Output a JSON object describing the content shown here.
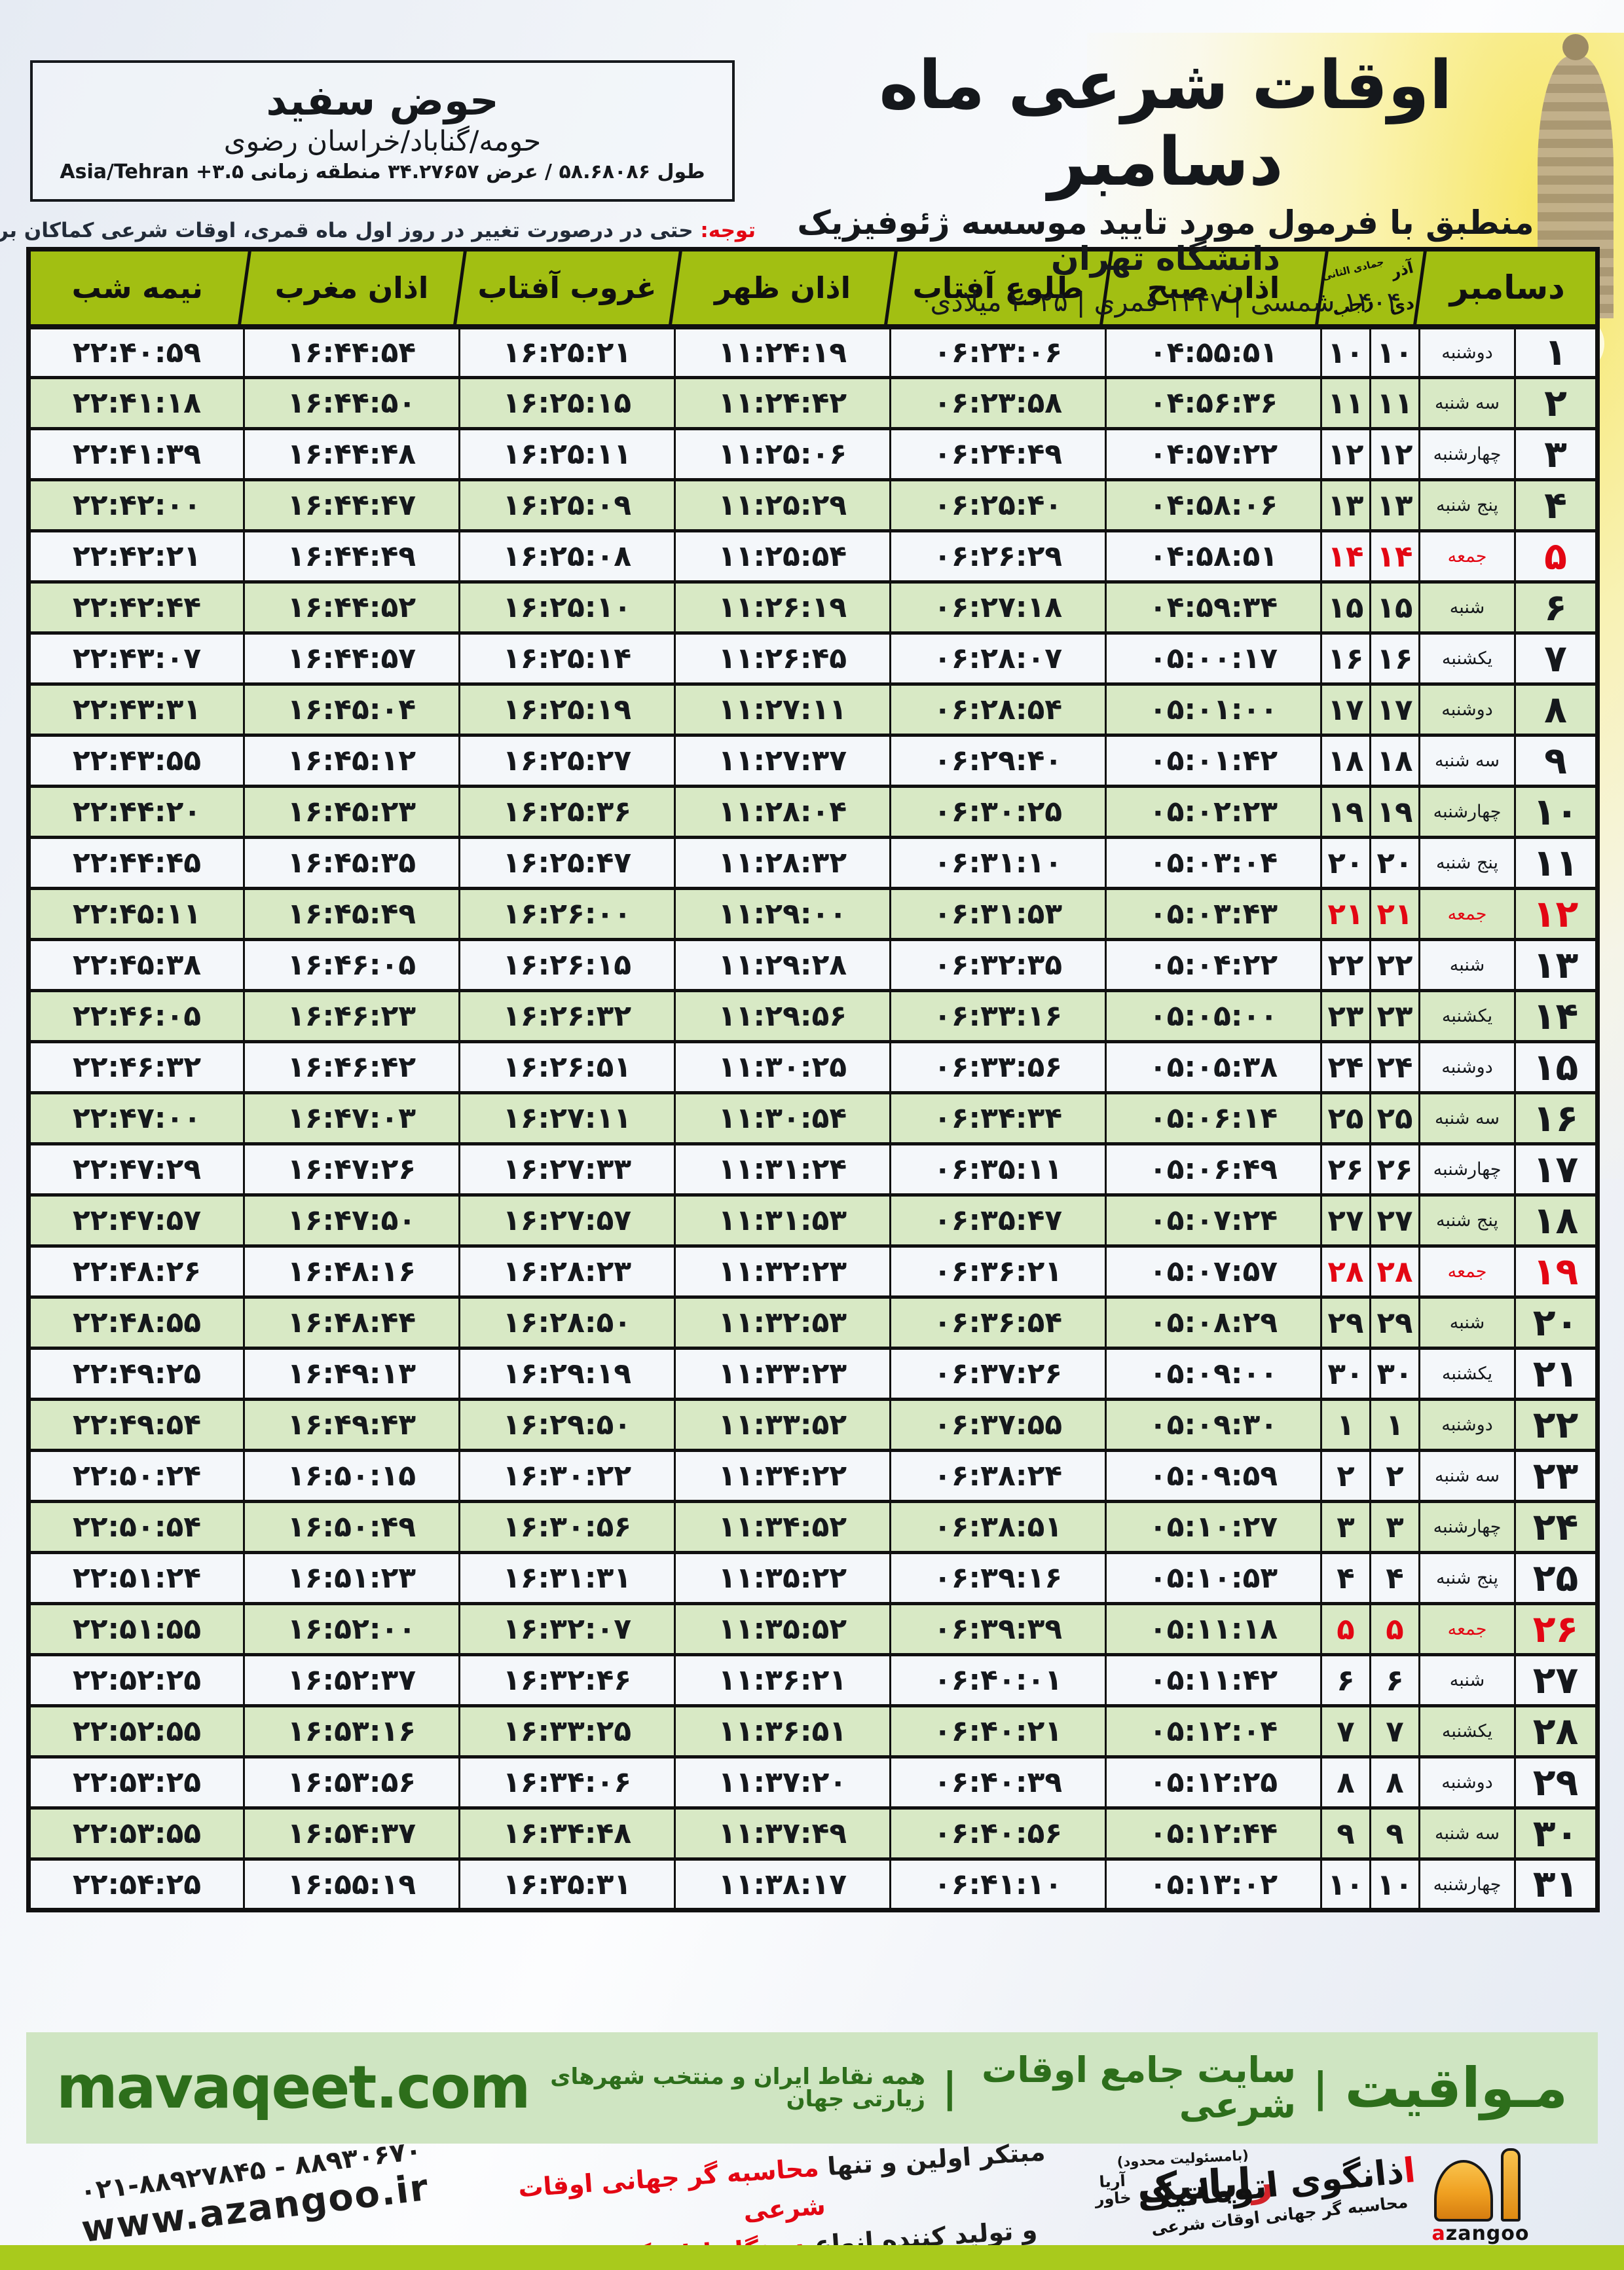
{
  "header": {
    "title": "اوقات شرعی ماه دسامبر",
    "subtitle": "منطبق با فرمول مورد تایید موسسه ژئوفیزیک دانشگاه تهران",
    "years": "۱۴۰۴ شمسی | ۱۴۴۷ قمری | ۲۰۲۵ میلادی"
  },
  "location": {
    "name": "حوض سفید",
    "region": "حومه/گناباد/خراسان رضوی",
    "coords": "طول ۵۸.۶۸۰۸۶ / عرض ۳۴.۲۷۶۵۷ منطقه زمانی ۳.۵+ Asia/Tehran"
  },
  "notice": {
    "label": "توجه:",
    "text": " حتی در درصورت تغییر در روز اول ماه قمری، اوقات شرعی کماکان برای روزهای شمسی و میلادی معتبر است."
  },
  "table": {
    "headers": {
      "december": "دسامبر",
      "cal_top_right": "آذر",
      "cal_top_left": "جمادی الثانی",
      "cal_bottom_right": "دی",
      "cal_bottom_left": "رجب",
      "fajr": "اذان صبح",
      "sunrise": "طلوع آفتاب",
      "dhuhr": "اذان ظهر",
      "sunset": "غروب آفتاب",
      "maghrib": "اذان مغرب",
      "midnight": "نیمه شب"
    },
    "rows": [
      {
        "day": "۱",
        "weekday": "دوشنبه",
        "cal": "۱۰",
        "fajr": "۰۴:۵۵:۵۱",
        "sunrise": "۰۶:۲۳:۰۶",
        "dhuhr": "۱۱:۲۴:۱۹",
        "sunset": "۱۶:۲۵:۲۱",
        "maghrib": "۱۶:۴۴:۵۴",
        "midnight": "۲۲:۴۰:۵۹",
        "friday": false
      },
      {
        "day": "۲",
        "weekday": "سه شنبه",
        "cal": "۱۱",
        "fajr": "۰۴:۵۶:۳۶",
        "sunrise": "۰۶:۲۳:۵۸",
        "dhuhr": "۱۱:۲۴:۴۲",
        "sunset": "۱۶:۲۵:۱۵",
        "maghrib": "۱۶:۴۴:۵۰",
        "midnight": "۲۲:۴۱:۱۸",
        "friday": false
      },
      {
        "day": "۳",
        "weekday": "چهارشنبه",
        "cal": "۱۲",
        "fajr": "۰۴:۵۷:۲۲",
        "sunrise": "۰۶:۲۴:۴۹",
        "dhuhr": "۱۱:۲۵:۰۶",
        "sunset": "۱۶:۲۵:۱۱",
        "maghrib": "۱۶:۴۴:۴۸",
        "midnight": "۲۲:۴۱:۳۹",
        "friday": false
      },
      {
        "day": "۴",
        "weekday": "پنج شنبه",
        "cal": "۱۳",
        "fajr": "۰۴:۵۸:۰۶",
        "sunrise": "۰۶:۲۵:۴۰",
        "dhuhr": "۱۱:۲۵:۲۹",
        "sunset": "۱۶:۲۵:۰۹",
        "maghrib": "۱۶:۴۴:۴۷",
        "midnight": "۲۲:۴۲:۰۰",
        "friday": false
      },
      {
        "day": "۵",
        "weekday": "جمعه",
        "cal": "۱۴",
        "fajr": "۰۴:۵۸:۵۱",
        "sunrise": "۰۶:۲۶:۲۹",
        "dhuhr": "۱۱:۲۵:۵۴",
        "sunset": "۱۶:۲۵:۰۸",
        "maghrib": "۱۶:۴۴:۴۹",
        "midnight": "۲۲:۴۲:۲۱",
        "friday": true
      },
      {
        "day": "۶",
        "weekday": "شنبه",
        "cal": "۱۵",
        "fajr": "۰۴:۵۹:۳۴",
        "sunrise": "۰۶:۲۷:۱۸",
        "dhuhr": "۱۱:۲۶:۱۹",
        "sunset": "۱۶:۲۵:۱۰",
        "maghrib": "۱۶:۴۴:۵۲",
        "midnight": "۲۲:۴۲:۴۴",
        "friday": false
      },
      {
        "day": "۷",
        "weekday": "یکشنبه",
        "cal": "۱۶",
        "fajr": "۰۵:۰۰:۱۷",
        "sunrise": "۰۶:۲۸:۰۷",
        "dhuhr": "۱۱:۲۶:۴۵",
        "sunset": "۱۶:۲۵:۱۴",
        "maghrib": "۱۶:۴۴:۵۷",
        "midnight": "۲۲:۴۳:۰۷",
        "friday": false
      },
      {
        "day": "۸",
        "weekday": "دوشنبه",
        "cal": "۱۷",
        "fajr": "۰۵:۰۱:۰۰",
        "sunrise": "۰۶:۲۸:۵۴",
        "dhuhr": "۱۱:۲۷:۱۱",
        "sunset": "۱۶:۲۵:۱۹",
        "maghrib": "۱۶:۴۵:۰۴",
        "midnight": "۲۲:۴۳:۳۱",
        "friday": false
      },
      {
        "day": "۹",
        "weekday": "سه شنبه",
        "cal": "۱۸",
        "fajr": "۰۵:۰۱:۴۲",
        "sunrise": "۰۶:۲۹:۴۰",
        "dhuhr": "۱۱:۲۷:۳۷",
        "sunset": "۱۶:۲۵:۲۷",
        "maghrib": "۱۶:۴۵:۱۲",
        "midnight": "۲۲:۴۳:۵۵",
        "friday": false
      },
      {
        "day": "۱۰",
        "weekday": "چهارشنبه",
        "cal": "۱۹",
        "fajr": "۰۵:۰۲:۲۳",
        "sunrise": "۰۶:۳۰:۲۵",
        "dhuhr": "۱۱:۲۸:۰۴",
        "sunset": "۱۶:۲۵:۳۶",
        "maghrib": "۱۶:۴۵:۲۳",
        "midnight": "۲۲:۴۴:۲۰",
        "friday": false
      },
      {
        "day": "۱۱",
        "weekday": "پنج شنبه",
        "cal": "۲۰",
        "fajr": "۰۵:۰۳:۰۴",
        "sunrise": "۰۶:۳۱:۱۰",
        "dhuhr": "۱۱:۲۸:۳۲",
        "sunset": "۱۶:۲۵:۴۷",
        "maghrib": "۱۶:۴۵:۳۵",
        "midnight": "۲۲:۴۴:۴۵",
        "friday": false
      },
      {
        "day": "۱۲",
        "weekday": "جمعه",
        "cal": "۲۱",
        "fajr": "۰۵:۰۳:۴۳",
        "sunrise": "۰۶:۳۱:۵۳",
        "dhuhr": "۱۱:۲۹:۰۰",
        "sunset": "۱۶:۲۶:۰۰",
        "maghrib": "۱۶:۴۵:۴۹",
        "midnight": "۲۲:۴۵:۱۱",
        "friday": true
      },
      {
        "day": "۱۳",
        "weekday": "شنبه",
        "cal": "۲۲",
        "fajr": "۰۵:۰۴:۲۲",
        "sunrise": "۰۶:۳۲:۳۵",
        "dhuhr": "۱۱:۲۹:۲۸",
        "sunset": "۱۶:۲۶:۱۵",
        "maghrib": "۱۶:۴۶:۰۵",
        "midnight": "۲۲:۴۵:۳۸",
        "friday": false
      },
      {
        "day": "۱۴",
        "weekday": "یکشنبه",
        "cal": "۲۳",
        "fajr": "۰۵:۰۵:۰۰",
        "sunrise": "۰۶:۳۳:۱۶",
        "dhuhr": "۱۱:۲۹:۵۶",
        "sunset": "۱۶:۲۶:۳۲",
        "maghrib": "۱۶:۴۶:۲۳",
        "midnight": "۲۲:۴۶:۰۵",
        "friday": false
      },
      {
        "day": "۱۵",
        "weekday": "دوشنبه",
        "cal": "۲۴",
        "fajr": "۰۵:۰۵:۳۸",
        "sunrise": "۰۶:۳۳:۵۶",
        "dhuhr": "۱۱:۳۰:۲۵",
        "sunset": "۱۶:۲۶:۵۱",
        "maghrib": "۱۶:۴۶:۴۲",
        "midnight": "۲۲:۴۶:۳۲",
        "friday": false
      },
      {
        "day": "۱۶",
        "weekday": "سه شنبه",
        "cal": "۲۵",
        "fajr": "۰۵:۰۶:۱۴",
        "sunrise": "۰۶:۳۴:۳۴",
        "dhuhr": "۱۱:۳۰:۵۴",
        "sunset": "۱۶:۲۷:۱۱",
        "maghrib": "۱۶:۴۷:۰۳",
        "midnight": "۲۲:۴۷:۰۰",
        "friday": false
      },
      {
        "day": "۱۷",
        "weekday": "چهارشنبه",
        "cal": "۲۶",
        "fajr": "۰۵:۰۶:۴۹",
        "sunrise": "۰۶:۳۵:۱۱",
        "dhuhr": "۱۱:۳۱:۲۴",
        "sunset": "۱۶:۲۷:۳۳",
        "maghrib": "۱۶:۴۷:۲۶",
        "midnight": "۲۲:۴۷:۲۹",
        "friday": false
      },
      {
        "day": "۱۸",
        "weekday": "پنج شنبه",
        "cal": "۲۷",
        "fajr": "۰۵:۰۷:۲۴",
        "sunrise": "۰۶:۳۵:۴۷",
        "dhuhr": "۱۱:۳۱:۵۳",
        "sunset": "۱۶:۲۷:۵۷",
        "maghrib": "۱۶:۴۷:۵۰",
        "midnight": "۲۲:۴۷:۵۷",
        "friday": false
      },
      {
        "day": "۱۹",
        "weekday": "جمعه",
        "cal": "۲۸",
        "fajr": "۰۵:۰۷:۵۷",
        "sunrise": "۰۶:۳۶:۲۱",
        "dhuhr": "۱۱:۳۲:۲۳",
        "sunset": "۱۶:۲۸:۲۳",
        "maghrib": "۱۶:۴۸:۱۶",
        "midnight": "۲۲:۴۸:۲۶",
        "friday": true
      },
      {
        "day": "۲۰",
        "weekday": "شنبه",
        "cal": "۲۹",
        "fajr": "۰۵:۰۸:۲۹",
        "sunrise": "۰۶:۳۶:۵۴",
        "dhuhr": "۱۱:۳۲:۵۳",
        "sunset": "۱۶:۲۸:۵۰",
        "maghrib": "۱۶:۴۸:۴۴",
        "midnight": "۲۲:۴۸:۵۵",
        "friday": false
      },
      {
        "day": "۲۱",
        "weekday": "یکشنبه",
        "cal": "۳۰",
        "fajr": "۰۵:۰۹:۰۰",
        "sunrise": "۰۶:۳۷:۲۶",
        "dhuhr": "۱۱:۳۳:۲۳",
        "sunset": "۱۶:۲۹:۱۹",
        "maghrib": "۱۶:۴۹:۱۳",
        "midnight": "۲۲:۴۹:۲۵",
        "friday": false
      },
      {
        "day": "۲۲",
        "weekday": "دوشنبه",
        "cal": "۱",
        "fajr": "۰۵:۰۹:۳۰",
        "sunrise": "۰۶:۳۷:۵۵",
        "dhuhr": "۱۱:۳۳:۵۲",
        "sunset": "۱۶:۲۹:۵۰",
        "maghrib": "۱۶:۴۹:۴۳",
        "midnight": "۲۲:۴۹:۵۴",
        "friday": false
      },
      {
        "day": "۲۳",
        "weekday": "سه شنبه",
        "cal": "۲",
        "fajr": "۰۵:۰۹:۵۹",
        "sunrise": "۰۶:۳۸:۲۴",
        "dhuhr": "۱۱:۳۴:۲۲",
        "sunset": "۱۶:۳۰:۲۲",
        "maghrib": "۱۶:۵۰:۱۵",
        "midnight": "۲۲:۵۰:۲۴",
        "friday": false
      },
      {
        "day": "۲۴",
        "weekday": "چهارشنبه",
        "cal": "۳",
        "fajr": "۰۵:۱۰:۲۷",
        "sunrise": "۰۶:۳۸:۵۱",
        "dhuhr": "۱۱:۳۴:۵۲",
        "sunset": "۱۶:۳۰:۵۶",
        "maghrib": "۱۶:۵۰:۴۹",
        "midnight": "۲۲:۵۰:۵۴",
        "friday": false
      },
      {
        "day": "۲۵",
        "weekday": "پنج شنبه",
        "cal": "۴",
        "fajr": "۰۵:۱۰:۵۳",
        "sunrise": "۰۶:۳۹:۱۶",
        "dhuhr": "۱۱:۳۵:۲۲",
        "sunset": "۱۶:۳۱:۳۱",
        "maghrib": "۱۶:۵۱:۲۳",
        "midnight": "۲۲:۵۱:۲۴",
        "friday": false
      },
      {
        "day": "۲۶",
        "weekday": "جمعه",
        "cal": "۵",
        "fajr": "۰۵:۱۱:۱۸",
        "sunrise": "۰۶:۳۹:۳۹",
        "dhuhr": "۱۱:۳۵:۵۲",
        "sunset": "۱۶:۳۲:۰۷",
        "maghrib": "۱۶:۵۲:۰۰",
        "midnight": "۲۲:۵۱:۵۵",
        "friday": true
      },
      {
        "day": "۲۷",
        "weekday": "شنبه",
        "cal": "۶",
        "fajr": "۰۵:۱۱:۴۲",
        "sunrise": "۰۶:۴۰:۰۱",
        "dhuhr": "۱۱:۳۶:۲۱",
        "sunset": "۱۶:۳۲:۴۶",
        "maghrib": "۱۶:۵۲:۳۷",
        "midnight": "۲۲:۵۲:۲۵",
        "friday": false
      },
      {
        "day": "۲۸",
        "weekday": "یکشنبه",
        "cal": "۷",
        "fajr": "۰۵:۱۲:۰۴",
        "sunrise": "۰۶:۴۰:۲۱",
        "dhuhr": "۱۱:۳۶:۵۱",
        "sunset": "۱۶:۳۳:۲۵",
        "maghrib": "۱۶:۵۳:۱۶",
        "midnight": "۲۲:۵۲:۵۵",
        "friday": false
      },
      {
        "day": "۲۹",
        "weekday": "دوشنبه",
        "cal": "۸",
        "fajr": "۰۵:۱۲:۲۵",
        "sunrise": "۰۶:۴۰:۳۹",
        "dhuhr": "۱۱:۳۷:۲۰",
        "sunset": "۱۶:۳۴:۰۶",
        "maghrib": "۱۶:۵۳:۵۶",
        "midnight": "۲۲:۵۳:۲۵",
        "friday": false
      },
      {
        "day": "۳۰",
        "weekday": "سه شنبه",
        "cal": "۹",
        "fajr": "۰۵:۱۲:۴۴",
        "sunrise": "۰۶:۴۰:۵۶",
        "dhuhr": "۱۱:۳۷:۴۹",
        "sunset": "۱۶:۳۴:۴۸",
        "maghrib": "۱۶:۵۴:۳۷",
        "midnight": "۲۲:۵۳:۵۵",
        "friday": false
      },
      {
        "day": "۳۱",
        "weekday": "چهارشنبه",
        "cal": "۱۰",
        "fajr": "۰۵:۱۳:۰۲",
        "sunrise": "۰۶:۴۱:۱۰",
        "dhuhr": "۱۱:۳۸:۱۷",
        "sunset": "۱۶:۳۵:۳۱",
        "maghrib": "۱۶:۵۵:۱۹",
        "midnight": "۲۲:۵۴:۲۵",
        "friday": false
      }
    ]
  },
  "site_bar": {
    "brand": "مـواقیت",
    "divider": "|",
    "tagline": "سایت جامع اوقات شرعی",
    "scope": "همه نقاط ایران و منتخب شهرهای زیارتی جهان",
    "domain": "mavaqeet.com"
  },
  "footer": {
    "phone": "۰۲۱-۸۸۹۲۷۸۴۵ - ۸۸۹۳۰۶۷۰",
    "website": "www.azangoo.ir",
    "slogan_line1_black": "مبتکر اولین و تنها ",
    "slogan_line1_red": "محاسبه گر جهانی اوقات شرعی",
    "slogan_line2_black": "و تولید کننده انواع ",
    "slogan_line2_red": "دستگاه اذان گوی تمام خودکار ماهواره ای",
    "rayanik_llc": "(بامسئولیت محدود)",
    "rayanik_name": "رایانیک",
    "rayanik_side_top": "آریا",
    "rayanik_side_bottom": "خاور",
    "azangoo_title": "اذانگوی اتوماتیک",
    "azangoo_sub": "محاسبه گر جهانی اوقات شرعی",
    "azangoo_latin": "azangoo"
  },
  "colors": {
    "header_green": "#a2bf12",
    "row_green": "#d8e9c5",
    "row_white": "#f4f7fa",
    "friday_red": "#e30613",
    "bar_background": "#cfe5c2",
    "bar_text_green": "#2d6e1b",
    "bottom_strip_green": "#a9ca1c"
  }
}
